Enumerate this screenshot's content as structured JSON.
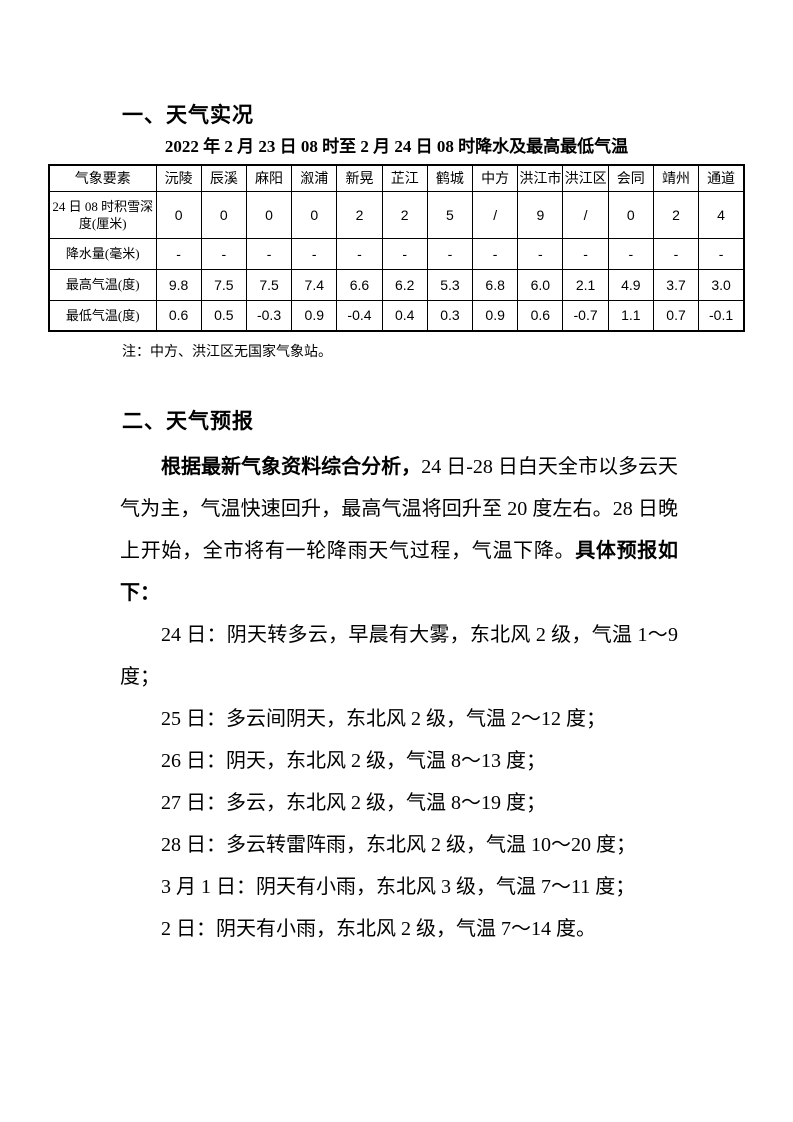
{
  "sections": {
    "one": {
      "heading": "一、天气实况"
    },
    "two": {
      "heading": "二、天气预报"
    }
  },
  "weather_table": {
    "title": "2022 年 2 月 23 日 08 时至 2 月 24 日 08 时降水及最高最低气温",
    "note": "注：中方、洪江区无国家气象站。",
    "header": [
      "气象要素",
      "沅陵",
      "辰溪",
      "麻阳",
      "溆浦",
      "新晃",
      "芷江",
      "鹤城",
      "中方",
      "洪江市",
      "洪江区",
      "会同",
      "靖州",
      "通道"
    ],
    "rows": [
      {
        "label": "24 日 08 时积雪深度(厘米)",
        "values": [
          "0",
          "0",
          "0",
          "0",
          "2",
          "2",
          "5",
          "/",
          "9",
          "/",
          "0",
          "2",
          "4"
        ]
      },
      {
        "label": "降水量(毫米)",
        "values": [
          "-",
          "-",
          "-",
          "-",
          "-",
          "-",
          "-",
          "-",
          "-",
          "-",
          "-",
          "-",
          "-"
        ]
      },
      {
        "label": "最高气温(度)",
        "values": [
          "9.8",
          "7.5",
          "7.5",
          "7.4",
          "6.6",
          "6.2",
          "5.3",
          "6.8",
          "6.0",
          "2.1",
          "4.9",
          "3.7",
          "3.0"
        ]
      },
      {
        "label": "最低气温(度)",
        "values": [
          "0.6",
          "0.5",
          "-0.3",
          "0.9",
          "-0.4",
          "0.4",
          "0.3",
          "0.9",
          "0.6",
          "-0.7",
          "1.1",
          "0.7",
          "-0.1"
        ]
      }
    ]
  },
  "forecast": {
    "intro_bold_lead": "根据最新气象资料综合分析，",
    "intro_body": "24 日-28 日白天全市以多云天气为主，气温快速回升，最高气温将回升至 20 度左右。28 日晚上开始，全市将有一轮降雨天气过程，气温下降。",
    "intro_bold_tail": "具体预报如下：",
    "daily": [
      "24 日：阴天转多云，早晨有大雾，东北风 2 级，气温 1～9 度；",
      "25 日：多云间阴天，东北风 2 级，气温 2～12 度；",
      "26 日：阴天，东北风 2 级，气温 8～13 度；",
      "27 日：多云，东北风 2 级，气温 8～19 度；",
      "28 日：多云转雷阵雨，东北风 2 级，气温 10～20 度；",
      "3 月 1 日：阴天有小雨，东北风 3 级，气温 7～11 度；",
      "2 日：阴天有小雨，东北风 2 级，气温 7～14 度。"
    ]
  }
}
